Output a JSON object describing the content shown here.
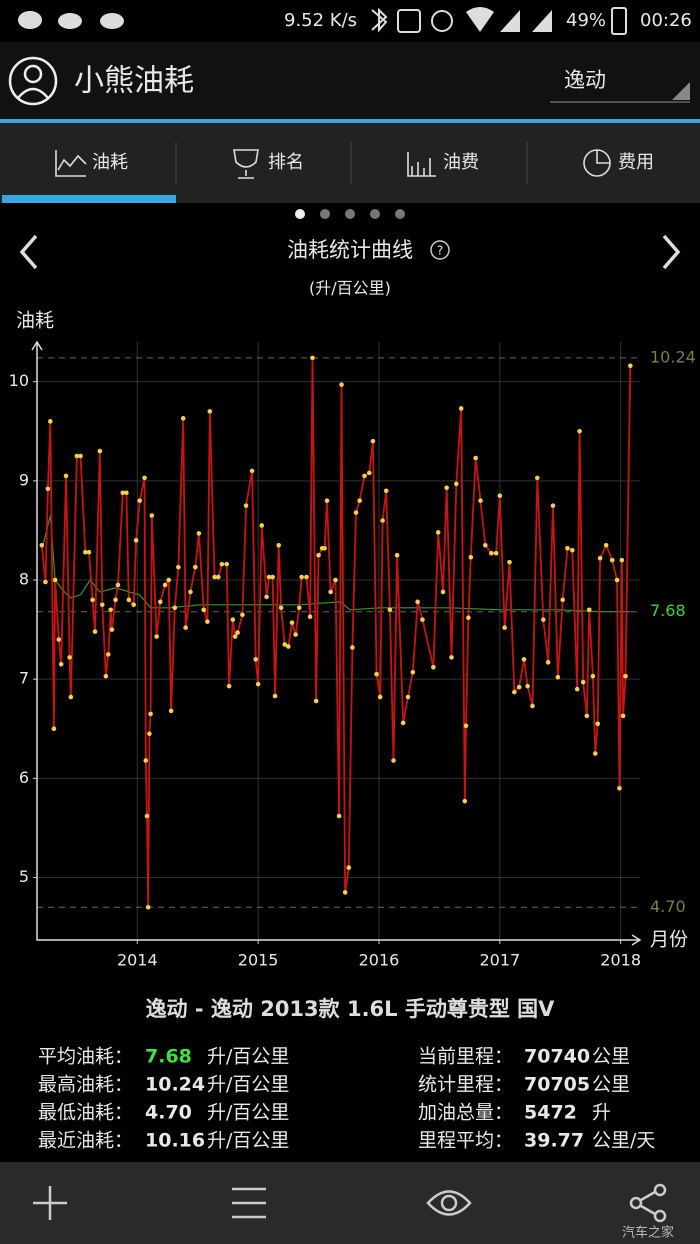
{
  "status_bar": {
    "speed": "9.52 K/s",
    "battery": "49%",
    "time": "00:26"
  },
  "header": {
    "title": "小熊油耗",
    "car_select": "逸动"
  },
  "tabs": [
    "油耗",
    "排名",
    "油费",
    "费用"
  ],
  "chart_data": {
    "type": "line",
    "title": "油耗统计曲线",
    "subtitle": "(升/百公里)",
    "y_label": "油耗",
    "x_label": "月份",
    "xlim": [
      2013.17,
      2018.16
    ],
    "xticks": [
      2014,
      2015,
      2016,
      2017,
      2018
    ],
    "ylim": [
      4.37,
      10.4
    ],
    "yticks": [
      5,
      6,
      7,
      8,
      9,
      10
    ],
    "grid": true,
    "series": [
      {
        "color": "#c81414",
        "marker_color": "#f2d24a",
        "x": [
          2013.21,
          2013.24,
          2013.26,
          2013.28,
          2013.31,
          2013.32,
          2013.35,
          2013.37,
          2013.41,
          2013.44,
          2013.45,
          2013.5,
          2013.53,
          2013.57,
          2013.6,
          2013.63,
          2013.65,
          2013.69,
          2013.71,
          2013.74,
          2013.76,
          2013.78,
          2013.79,
          2013.82,
          2013.84,
          2013.88,
          2013.91,
          2013.93,
          2013.97,
          2013.99,
          2014.02,
          2014.06,
          2014.07,
          2014.08,
          2014.09,
          2014.1,
          2014.11,
          2014.12,
          2014.16,
          2014.19,
          2014.23,
          2014.26,
          2014.28,
          2014.31,
          2014.34,
          2014.38,
          2014.4,
          2014.44,
          2014.48,
          2014.51,
          2014.55,
          2014.58,
          2014.6,
          2014.64,
          2014.67,
          2014.7,
          2014.74,
          2014.76,
          2014.79,
          2014.81,
          2014.83,
          2014.87,
          2014.9,
          2014.95,
          2014.98,
          2015.0,
          2015.03,
          2015.07,
          2015.09,
          2015.12,
          2015.14,
          2015.17,
          2015.19,
          2015.22,
          2015.25,
          2015.28,
          2015.31,
          2015.34,
          2015.36,
          2015.4,
          2015.43,
          2015.45,
          2015.48,
          2015.5,
          2015.53,
          2015.55,
          2015.57,
          2015.6,
          2015.64,
          2015.67,
          2015.69,
          2015.72,
          2015.75,
          2015.78,
          2015.81,
          2015.84,
          2015.88,
          2015.92,
          2015.95,
          2015.98,
          2016.01,
          2016.03,
          2016.06,
          2016.09,
          2016.12,
          2016.15,
          2016.2,
          2016.24,
          2016.28,
          2016.32,
          2016.36,
          2016.45,
          2016.49,
          2016.53,
          2016.56,
          2016.6,
          2016.64,
          2016.68,
          2016.71,
          2016.72,
          2016.74,
          2016.76,
          2016.8,
          2016.84,
          2016.88,
          2016.93,
          2016.97,
          2017.0,
          2017.04,
          2017.08,
          2017.12,
          2017.16,
          2017.2,
          2017.23,
          2017.27,
          2017.31,
          2017.36,
          2017.4,
          2017.44,
          2017.48,
          2017.52,
          2017.56,
          2017.6,
          2017.64,
          2017.66,
          2017.69,
          2017.72,
          2017.74,
          2017.77,
          2017.79,
          2017.81,
          2017.83,
          2017.88,
          2017.93,
          2017.97,
          2017.99,
          2018.01,
          2018.02,
          2018.04,
          2018.08
        ],
        "values": [
          8.35,
          7.98,
          8.92,
          9.6,
          6.5,
          8.0,
          7.4,
          7.15,
          9.05,
          7.22,
          6.82,
          9.25,
          9.25,
          8.28,
          8.28,
          7.8,
          7.48,
          9.3,
          7.75,
          7.03,
          7.25,
          7.7,
          7.5,
          7.8,
          7.95,
          8.88,
          8.88,
          7.8,
          7.75,
          8.4,
          8.8,
          9.03,
          6.18,
          5.62,
          4.7,
          6.45,
          6.65,
          8.65,
          7.43,
          7.78,
          7.95,
          8.0,
          6.68,
          7.72,
          8.13,
          9.63,
          7.52,
          7.88,
          8.13,
          8.47,
          7.7,
          7.58,
          9.7,
          8.03,
          8.03,
          8.16,
          8.16,
          6.93,
          7.6,
          7.43,
          7.47,
          7.65,
          8.75,
          9.1,
          7.2,
          6.95,
          8.55,
          7.83,
          8.03,
          8.03,
          6.83,
          8.35,
          7.72,
          7.35,
          7.33,
          7.57,
          7.45,
          7.72,
          8.03,
          8.03,
          7.63,
          10.24,
          6.78,
          8.25,
          8.32,
          8.32,
          8.8,
          7.88,
          8.0,
          5.62,
          9.97,
          4.85,
          5.1,
          7.32,
          8.68,
          8.8,
          9.05,
          9.08,
          9.4,
          7.05,
          6.82,
          8.6,
          8.9,
          7.7,
          6.18,
          8.25,
          6.56,
          6.82,
          7.07,
          7.78,
          7.6,
          7.12,
          8.48,
          7.88,
          8.93,
          7.22,
          8.97,
          9.73,
          5.77,
          6.53,
          7.62,
          8.23,
          9.23,
          8.8,
          8.35,
          8.27,
          8.27,
          8.85,
          7.52,
          8.18,
          6.87,
          6.92,
          7.2,
          6.93,
          6.73,
          9.03,
          7.6,
          7.17,
          8.75,
          7.02,
          7.8,
          8.32,
          8.3,
          6.9,
          9.5,
          6.97,
          6.63,
          7.7,
          7.03,
          6.25,
          6.55,
          8.22,
          8.35,
          8.2,
          8.0,
          5.9,
          8.2,
          6.63,
          7.03,
          10.16
        ]
      },
      {
        "color": "#2f9a2f",
        "x": [
          2013.21,
          2013.28,
          2013.32,
          2013.38,
          2013.45,
          2013.53,
          2013.61,
          2013.69,
          2013.82,
          2014.02,
          2014.11,
          2014.27,
          2014.52,
          2014.93,
          2015.35,
          2015.68,
          2015.76,
          2016.01,
          2016.59,
          2017.0,
          2017.5,
          2017.83,
          2018.08
        ],
        "values": [
          8.3,
          8.65,
          8.0,
          7.9,
          7.82,
          7.85,
          8.0,
          7.88,
          7.92,
          7.85,
          7.72,
          7.72,
          7.75,
          7.75,
          7.75,
          7.78,
          7.7,
          7.72,
          7.72,
          7.7,
          7.7,
          7.68,
          7.68
        ]
      }
    ],
    "reference_lines": [
      {
        "value": 10.24,
        "color": "#7d7d45"
      },
      {
        "value": 7.68,
        "color": "#3fd13f"
      },
      {
        "value": {
          "value": 4.7,
          "label": "4.70"
        },
        "color": "#7d7d45"
      }
    ]
  },
  "car_model": "逸动 - 逸动 2013款 1.6L 手动尊贵型 国V",
  "stats": {
    "left": [
      {
        "label": "平均油耗：",
        "value": "7.68",
        "unit": "升/百公里",
        "value_color": "#3fe03f"
      },
      {
        "label": "最高油耗：",
        "value": "10.24",
        "unit": "升/百公里"
      },
      {
        "label": "最低油耗：",
        "value": "4.70",
        "unit": "升/百公里"
      },
      {
        "label": "最近油耗：",
        "value": "10.16",
        "unit": "升/百公里"
      }
    ],
    "right": [
      {
        "label": "当前里程：",
        "value": "70740",
        "unit": "公里"
      },
      {
        "label": "统计里程：",
        "value": "70705",
        "unit": "公里"
      },
      {
        "label": "加油总量：",
        "value": "5472",
        "unit": "升"
      },
      {
        "label": "里程平均：",
        "value": "39.77",
        "unit": "公里/天"
      }
    ]
  },
  "watermark": "汽车之家"
}
